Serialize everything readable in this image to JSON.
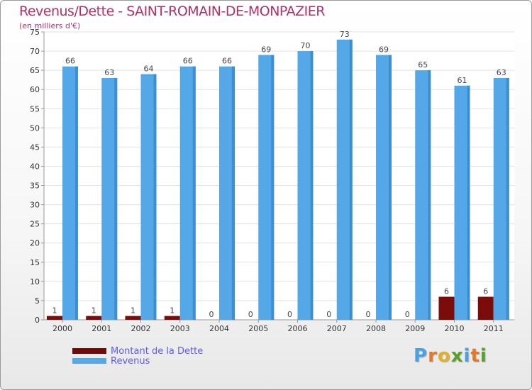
{
  "header": {
    "title": "Revenus/Dette - SAINT-ROMAIN-DE-MONPAZIER",
    "subtitle": "(en milliers d'€)"
  },
  "chart_data": {
    "type": "bar",
    "title": "Revenus/Dette - SAINT-ROMAIN-DE-MONPAZIER",
    "ylabel": "(en milliers d'€)",
    "xlabel": "",
    "categories": [
      "2000",
      "2001",
      "2002",
      "2003",
      "2004",
      "2005",
      "2006",
      "2007",
      "2008",
      "2009",
      "2010",
      "2011"
    ],
    "series": [
      {
        "name": "Montant de la Dette",
        "values": [
          1,
          1,
          1,
          1,
          0,
          0,
          0,
          0,
          0,
          0,
          6,
          6
        ],
        "color": "#7a0c0c"
      },
      {
        "name": "Revenus",
        "values": [
          66,
          63,
          64,
          66,
          66,
          69,
          70,
          73,
          69,
          65,
          61,
          63
        ],
        "color": "#55a8e8"
      }
    ],
    "ylim": [
      0,
      75
    ],
    "yticks": [
      0,
      5,
      10,
      15,
      20,
      25,
      30,
      35,
      40,
      45,
      50,
      55,
      60,
      65,
      70,
      75
    ],
    "grid": true,
    "legend_position": "bottom-left"
  },
  "legend": {
    "items": [
      {
        "label": "Montant de la Dette",
        "color": "#6e0a0a"
      },
      {
        "label": "Revenus",
        "color": "#55a8e8"
      }
    ]
  },
  "logo": {
    "letters": [
      "P",
      "r",
      "o",
      "x",
      "i",
      "t",
      "i"
    ],
    "colors": [
      "#4aa0e0",
      "#e07a2a",
      "#e0b02a",
      "#5aa02a",
      "#4aa0e0",
      "#e07a2a",
      "#5aa02a"
    ]
  }
}
